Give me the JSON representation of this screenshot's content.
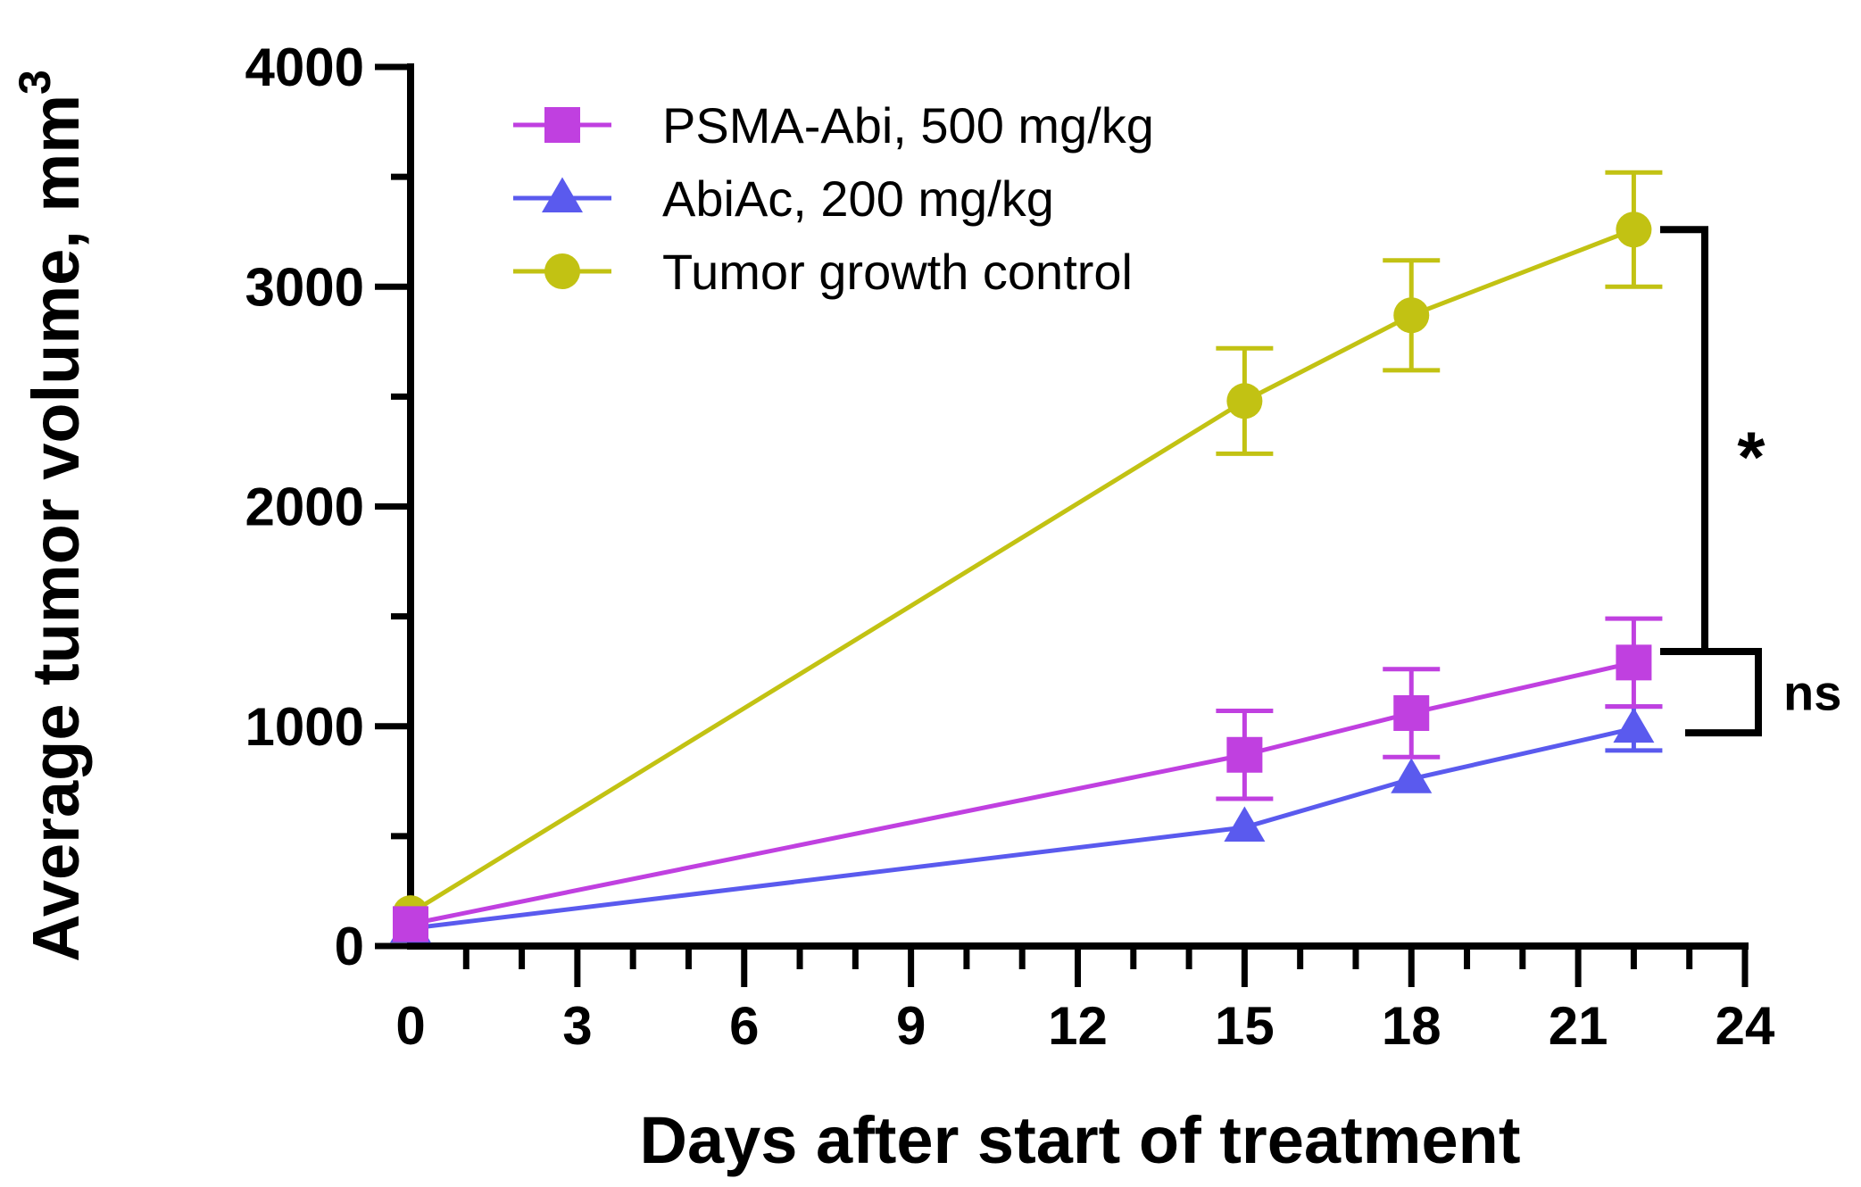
{
  "chart_data": {
    "type": "line",
    "title": "",
    "xlabel": "Days after start of treatment",
    "ylabel": "Average tumor volume,  mm",
    "ylabel_superscript": "3",
    "xlim": [
      0,
      24
    ],
    "ylim": [
      0,
      4000
    ],
    "xticks": [
      0,
      3,
      6,
      9,
      12,
      15,
      18,
      21,
      24
    ],
    "yticks": [
      0,
      1000,
      2000,
      3000,
      4000
    ],
    "grid": false,
    "legend_position": "top-left",
    "series": [
      {
        "name": "PSMA-Abi, 500 mg/kg",
        "color": "#c040e0",
        "marker": "square",
        "x": [
          0,
          15,
          18,
          22
        ],
        "values": [
          100,
          870,
          1060,
          1290
        ],
        "errors": [
          0,
          200,
          200,
          200
        ]
      },
      {
        "name": "AbiAc, 200 mg/kg",
        "color": "#5a5aee",
        "marker": "triangle",
        "x": [
          0,
          15,
          18,
          22
        ],
        "values": [
          80,
          540,
          760,
          990
        ],
        "errors": [
          0,
          0,
          0,
          100
        ]
      },
      {
        "name": "Tumor growth control",
        "color": "#c2c213",
        "marker": "circle",
        "x": [
          0,
          15,
          18,
          22
        ],
        "values": [
          150,
          2480,
          2870,
          3260
        ],
        "errors": [
          0,
          240,
          250,
          260
        ]
      }
    ],
    "annotations": [
      {
        "label": "*",
        "y_range": [
          1340,
          3260
        ]
      },
      {
        "label": "ns",
        "y_range": [
          970,
          1340
        ]
      }
    ]
  }
}
